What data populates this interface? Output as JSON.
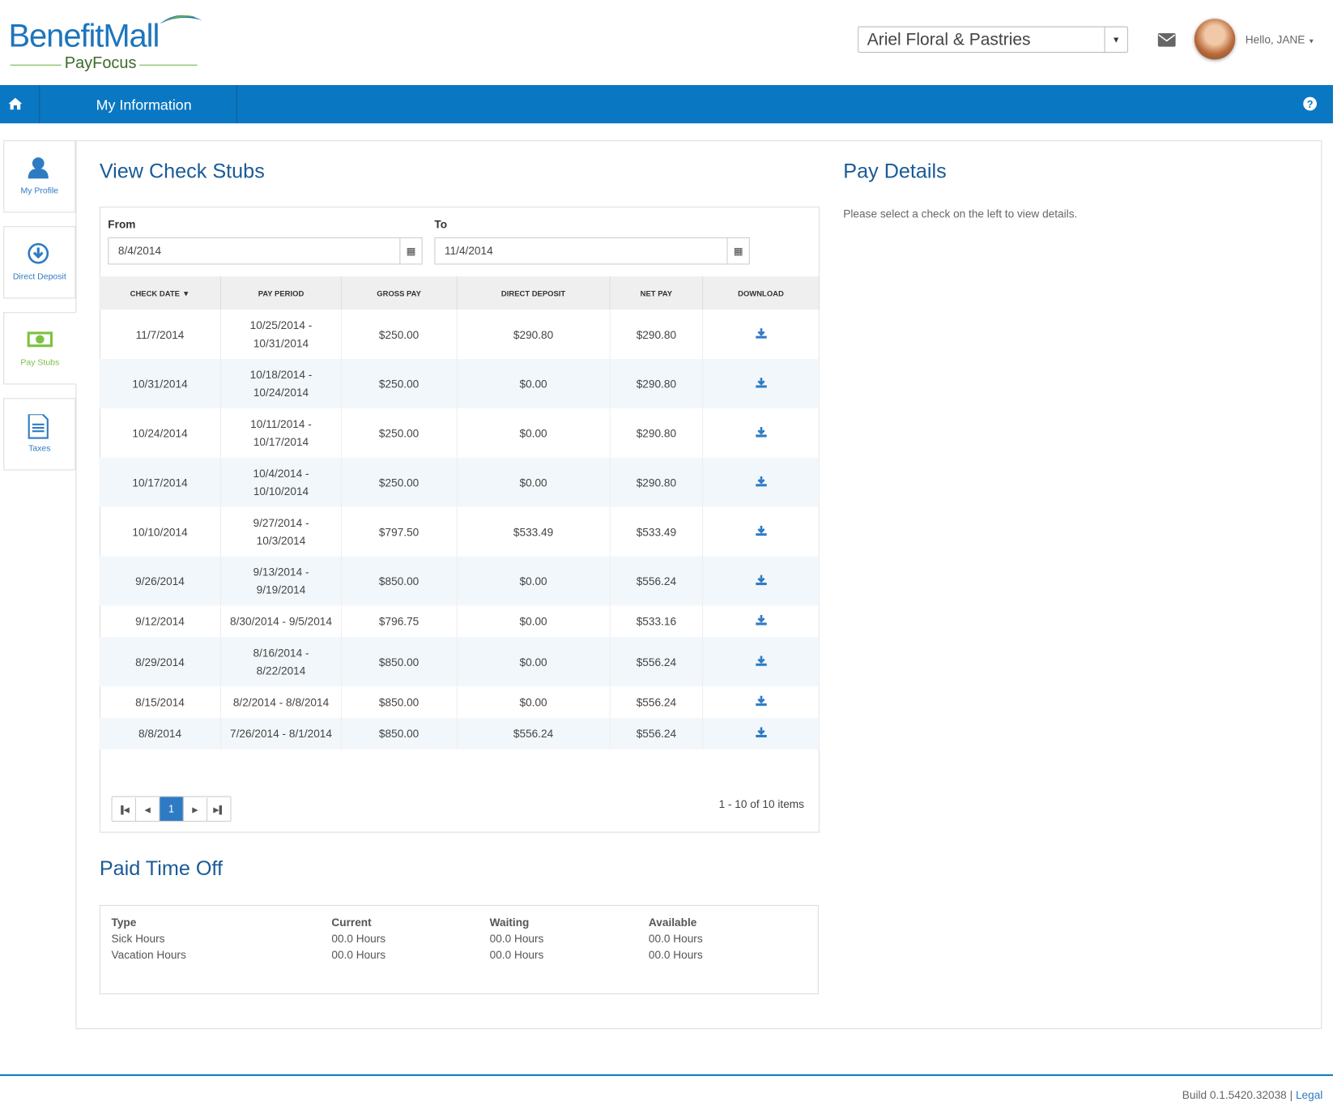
{
  "header": {
    "logo_brand": "BenefitMall",
    "logo_product": "PayFocus",
    "company": "Ariel Floral & Pastries",
    "greeting": "Hello, JANE"
  },
  "nav": {
    "title": "My Information"
  },
  "sidebar": [
    {
      "label": "My Profile"
    },
    {
      "label": "Direct Deposit"
    },
    {
      "label": "Pay Stubs"
    },
    {
      "label": "Taxes"
    }
  ],
  "check_stubs": {
    "title": "View Check Stubs",
    "from_label": "From",
    "from_value": "8/4/2014",
    "to_label": "To",
    "to_value": "11/4/2014",
    "columns": [
      "CHECK DATE",
      "PAY PERIOD",
      "GROSS PAY",
      "DIRECT DEPOSIT",
      "NET PAY",
      "DOWNLOAD"
    ],
    "rows": [
      [
        "11/7/2014",
        "10/25/2014 - 10/31/2014",
        "$250.00",
        "$290.80",
        "$290.80"
      ],
      [
        "10/31/2014",
        "10/18/2014 - 10/24/2014",
        "$250.00",
        "$0.00",
        "$290.80"
      ],
      [
        "10/24/2014",
        "10/11/2014 - 10/17/2014",
        "$250.00",
        "$0.00",
        "$290.80"
      ],
      [
        "10/17/2014",
        "10/4/2014 - 10/10/2014",
        "$250.00",
        "$0.00",
        "$290.80"
      ],
      [
        "10/10/2014",
        "9/27/2014 - 10/3/2014",
        "$797.50",
        "$533.49",
        "$533.49"
      ],
      [
        "9/26/2014",
        "9/13/2014 - 9/19/2014",
        "$850.00",
        "$0.00",
        "$556.24"
      ],
      [
        "9/12/2014",
        "8/30/2014 - 9/5/2014",
        "$796.75",
        "$0.00",
        "$533.16"
      ],
      [
        "8/29/2014",
        "8/16/2014 - 8/22/2014",
        "$850.00",
        "$0.00",
        "$556.24"
      ],
      [
        "8/15/2014",
        "8/2/2014 - 8/8/2014",
        "$850.00",
        "$0.00",
        "$556.24"
      ],
      [
        "8/8/2014",
        "7/26/2014 - 8/1/2014",
        "$850.00",
        "$556.24",
        "$556.24"
      ]
    ],
    "page": "1",
    "summary": "1 - 10 of 10 items"
  },
  "pay_details": {
    "title": "Pay Details",
    "message": "Please select a check on the left to view details."
  },
  "pto": {
    "title": "Paid Time Off",
    "columns": [
      "Type",
      "Current",
      "Waiting",
      "Available"
    ],
    "rows": [
      [
        "Sick Hours",
        "00.0 Hours",
        "00.0 Hours",
        "00.0 Hours"
      ],
      [
        "Vacation Hours",
        "00.0 Hours",
        "00.0 Hours",
        "00.0 Hours"
      ]
    ]
  },
  "footer": {
    "build": "Build 0.1.5420.32038",
    "separator": "|",
    "legal": "Legal"
  }
}
